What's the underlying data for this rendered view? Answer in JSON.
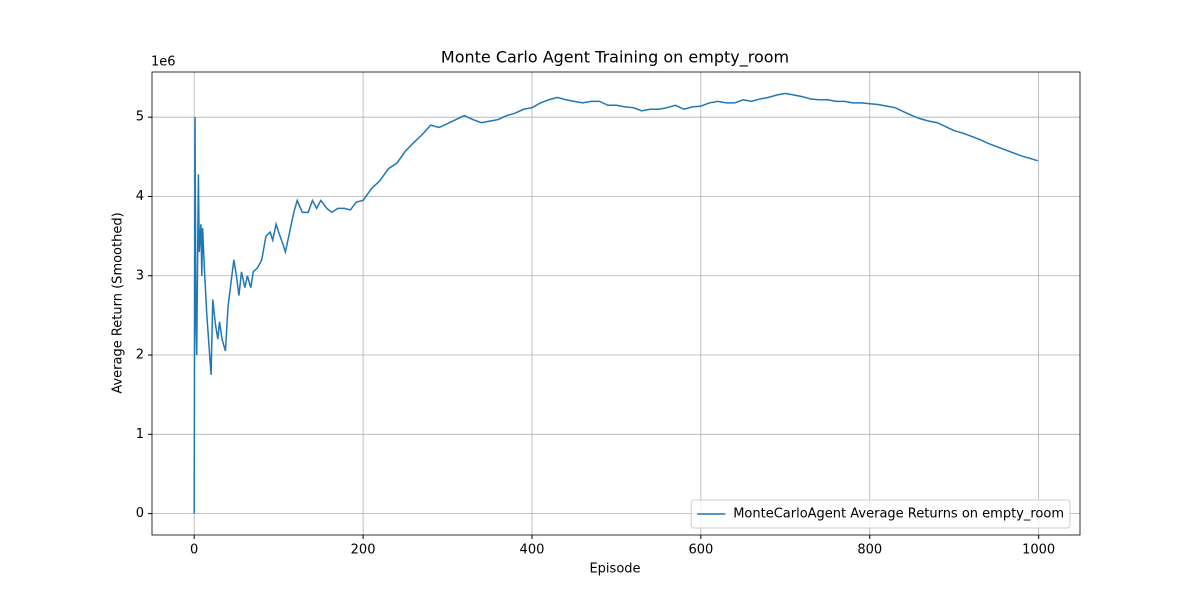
{
  "chart_data": {
    "type": "line",
    "title": "Monte Carlo Agent Training on empty_room",
    "xlabel": "Episode",
    "ylabel": "Average Return (Smoothed)",
    "y_offset_label": "1e6",
    "x": [
      0,
      1,
      2,
      3,
      5,
      6,
      8,
      9,
      10,
      12,
      15,
      20,
      22,
      25,
      28,
      30,
      33,
      37,
      40,
      44,
      47,
      50,
      53,
      56,
      60,
      63,
      67,
      70,
      75,
      80,
      85,
      90,
      93,
      97,
      100,
      105,
      108,
      112,
      118,
      122,
      128,
      135,
      140,
      145,
      150,
      157,
      163,
      170,
      178,
      185,
      192,
      200,
      210,
      220,
      230,
      240,
      250,
      260,
      270,
      280,
      290,
      300,
      310,
      320,
      330,
      340,
      350,
      360,
      370,
      380,
      390,
      400,
      410,
      420,
      430,
      440,
      450,
      460,
      470,
      480,
      490,
      500,
      510,
      520,
      530,
      540,
      550,
      560,
      570,
      580,
      590,
      600,
      610,
      620,
      630,
      640,
      650,
      660,
      670,
      680,
      690,
      700,
      710,
      720,
      730,
      740,
      750,
      760,
      770,
      780,
      790,
      800,
      810,
      820,
      830,
      840,
      850,
      860,
      870,
      880,
      890,
      900,
      910,
      920,
      930,
      940,
      950,
      960,
      970,
      980,
      990,
      999
    ],
    "series": [
      {
        "name": "MonteCarloAgent Average Returns on empty_room",
        "color": "#1f77b4",
        "values": [
          0,
          5.0,
          2.5,
          2.0,
          4.28,
          3.3,
          3.65,
          3.0,
          3.6,
          3.1,
          2.5,
          1.75,
          2.7,
          2.4,
          2.2,
          2.42,
          2.2,
          2.05,
          2.6,
          2.95,
          3.2,
          3.0,
          2.75,
          3.05,
          2.85,
          3.0,
          2.85,
          3.05,
          3.1,
          3.2,
          3.5,
          3.55,
          3.45,
          3.65,
          3.55,
          3.4,
          3.3,
          3.5,
          3.8,
          3.95,
          3.8,
          3.8,
          3.95,
          3.85,
          3.95,
          3.85,
          3.8,
          3.85,
          3.85,
          3.83,
          3.93,
          3.95,
          4.1,
          4.2,
          4.35,
          4.42,
          4.57,
          4.68,
          4.78,
          4.9,
          4.87,
          4.92,
          4.97,
          5.02,
          4.97,
          4.93,
          4.95,
          4.97,
          5.02,
          5.05,
          5.1,
          5.12,
          5.18,
          5.22,
          5.25,
          5.22,
          5.2,
          5.18,
          5.2,
          5.2,
          5.15,
          5.15,
          5.13,
          5.12,
          5.08,
          5.1,
          5.1,
          5.12,
          5.15,
          5.1,
          5.13,
          5.14,
          5.18,
          5.2,
          5.18,
          5.18,
          5.22,
          5.2,
          5.23,
          5.25,
          5.28,
          5.3,
          5.28,
          5.26,
          5.23,
          5.22,
          5.22,
          5.2,
          5.2,
          5.18,
          5.18,
          5.17,
          5.16,
          5.14,
          5.12,
          5.07,
          5.02,
          4.98,
          4.95,
          4.93,
          4.88,
          4.83,
          4.8,
          4.76,
          4.72,
          4.67,
          4.63,
          4.59,
          4.55,
          4.51,
          4.48,
          4.45
        ]
      }
    ],
    "xlim": [
      -49.95,
      1048.95
    ],
    "ylim": [
      -0.27,
      5.57
    ],
    "xticks": [
      0,
      200,
      400,
      600,
      800,
      1000
    ],
    "yticks": [
      0,
      1,
      2,
      3,
      4,
      5
    ],
    "grid": true,
    "legend": "lower right"
  }
}
